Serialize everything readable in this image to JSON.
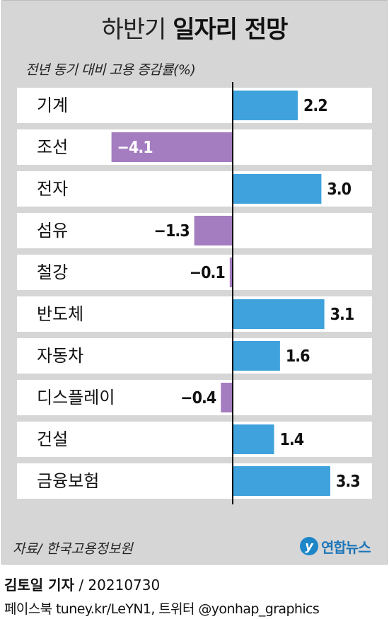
{
  "header": {
    "title_light": "하반기",
    "title_bold": "일자리 전망"
  },
  "chart_data": {
    "type": "bar",
    "orientation": "horizontal",
    "title": "하반기 일자리 전망",
    "subtitle": "전년 동기 대비 고용 증감률(%)",
    "categories": [
      "기계",
      "조선",
      "전자",
      "섬유",
      "철강",
      "반도체",
      "자동차",
      "디스플레이",
      "건설",
      "금융보험"
    ],
    "values": [
      2.2,
      -4.1,
      3.0,
      -1.3,
      -0.1,
      3.1,
      1.6,
      -0.4,
      1.4,
      3.3
    ],
    "value_labels": [
      "2.2",
      "−4.1",
      "3.0",
      "−1.3",
      "−0.1",
      "3.1",
      "1.6",
      "−0.4",
      "1.4",
      "3.3"
    ],
    "xlim": [
      -4.5,
      5.0
    ],
    "grid": false,
    "legend": "none",
    "colors": {
      "positive": "#3fa2dc",
      "negative": "#a47cc0",
      "row_band": "#ffffff",
      "panel": "#d6d6d6"
    }
  },
  "footer": {
    "source": "자료/ 한국고용정보원",
    "logo_mark": "y",
    "logo_text": "연합뉴스",
    "credit_name": "김토일 기자",
    "credit_date": " / 20210730",
    "social": "페이스북 tuney.kr/LeYN1, 트위터 @yonhap_graphics"
  }
}
